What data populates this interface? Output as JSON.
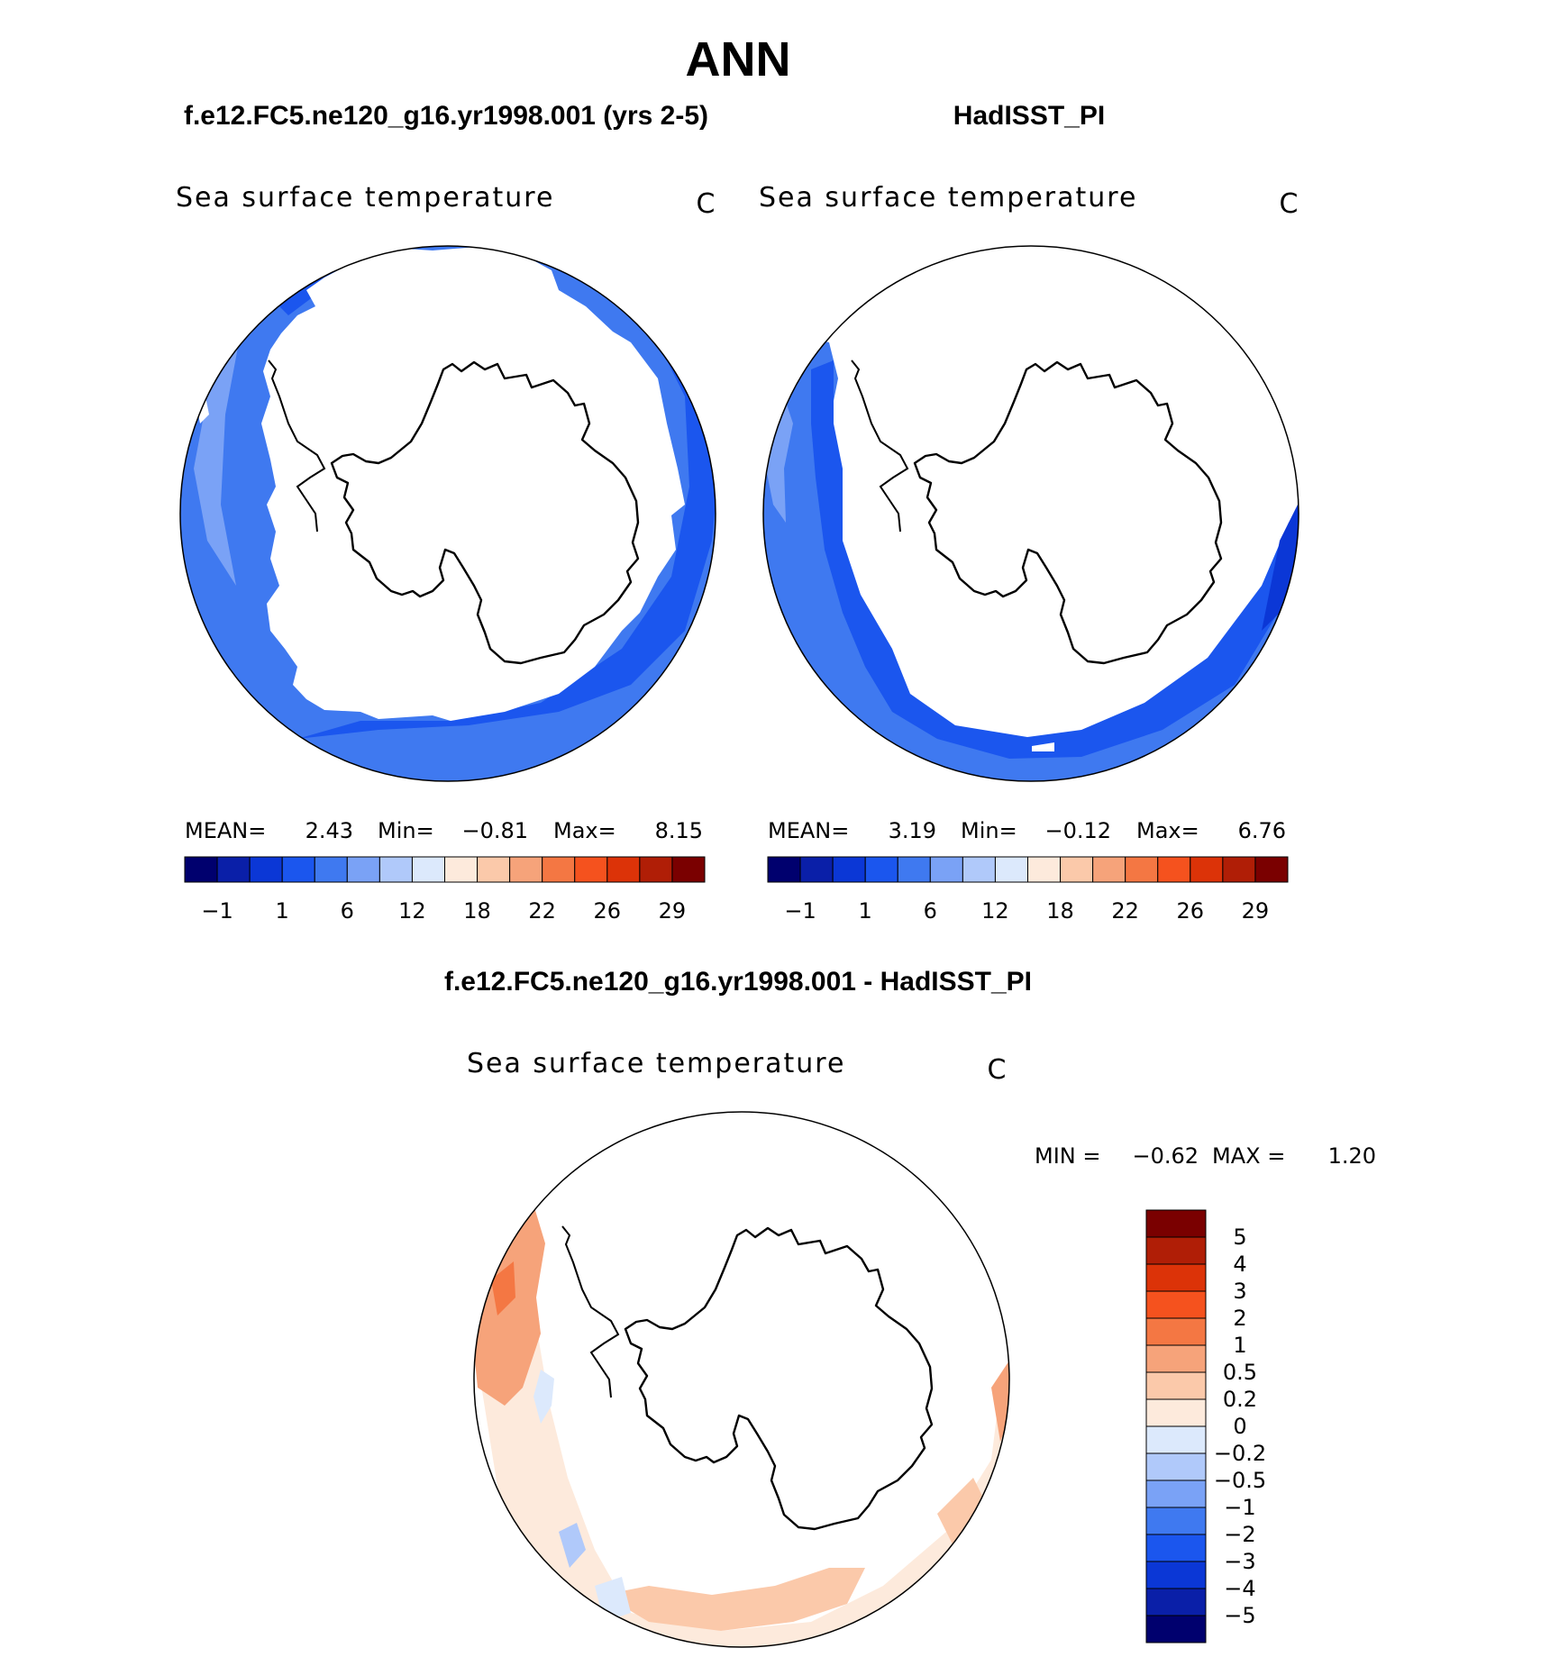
{
  "title": "ANN",
  "colors": {
    "sst_levels": [
      "#00006e",
      "#0a1fa8",
      "#0b37d6",
      "#1b56ee",
      "#3f79f0",
      "#7aa2f6",
      "#b0c9fa",
      "#dce9fc",
      "#fdeadc",
      "#fbc9aa",
      "#f6a37a",
      "#f47743",
      "#f5521e",
      "#dc3308",
      "#b01e06",
      "#7a0000"
    ],
    "diff_levels": [
      "#00006e",
      "#0a1fa8",
      "#0b37d6",
      "#1b56ee",
      "#3f79f0",
      "#7aa2f6",
      "#b0c9fa",
      "#dce9fc",
      "#fdeadc",
      "#fbc9aa",
      "#f6a37a",
      "#f47743",
      "#f5521e",
      "#dc3308",
      "#b01e06",
      "#7a0000"
    ]
  },
  "chart_data": [
    {
      "type": "heatmap",
      "projection": "south-polar-stereographic",
      "case_title": "f.e12.FC5.ne120_g16.yr1998.001 (yrs 2-5)",
      "variable": "Sea surface temperature",
      "units": "C",
      "stats": {
        "mean_label": "MEAN=",
        "mean": "2.43",
        "min_label": "Min=",
        "min": "−0.81",
        "max_label": "Max=",
        "max": "8.15"
      },
      "contour_levels": [
        "−1",
        "1",
        "6",
        "12",
        "18",
        "22",
        "26",
        "29"
      ],
      "level_count": 16
    },
    {
      "type": "heatmap",
      "projection": "south-polar-stereographic",
      "case_title": "HadISST_PI",
      "variable": "Sea surface temperature",
      "units": "C",
      "stats": {
        "mean_label": "MEAN=",
        "mean": "3.19",
        "min_label": "Min=",
        "min": "−0.12",
        "max_label": "Max=",
        "max": "6.76"
      },
      "contour_levels": [
        "−1",
        "1",
        "6",
        "12",
        "18",
        "22",
        "26",
        "29"
      ],
      "level_count": 16
    },
    {
      "type": "heatmap",
      "projection": "south-polar-stereographic",
      "case_title": "f.e12.FC5.ne120_g16.yr1998.001 - HadISST_PI",
      "variable": "Sea surface temperature",
      "units": "C",
      "stats": {
        "min_label": "MIN =",
        "min": "−0.62",
        "max_label": "MAX =",
        "max": "1.20"
      },
      "contour_levels": [
        "5",
        "4",
        "3",
        "2",
        "1",
        "0.5",
        "0.2",
        "0",
        "−0.2",
        "−0.5",
        "−1",
        "−2",
        "−3",
        "−4",
        "−5"
      ],
      "level_count": 16
    }
  ]
}
